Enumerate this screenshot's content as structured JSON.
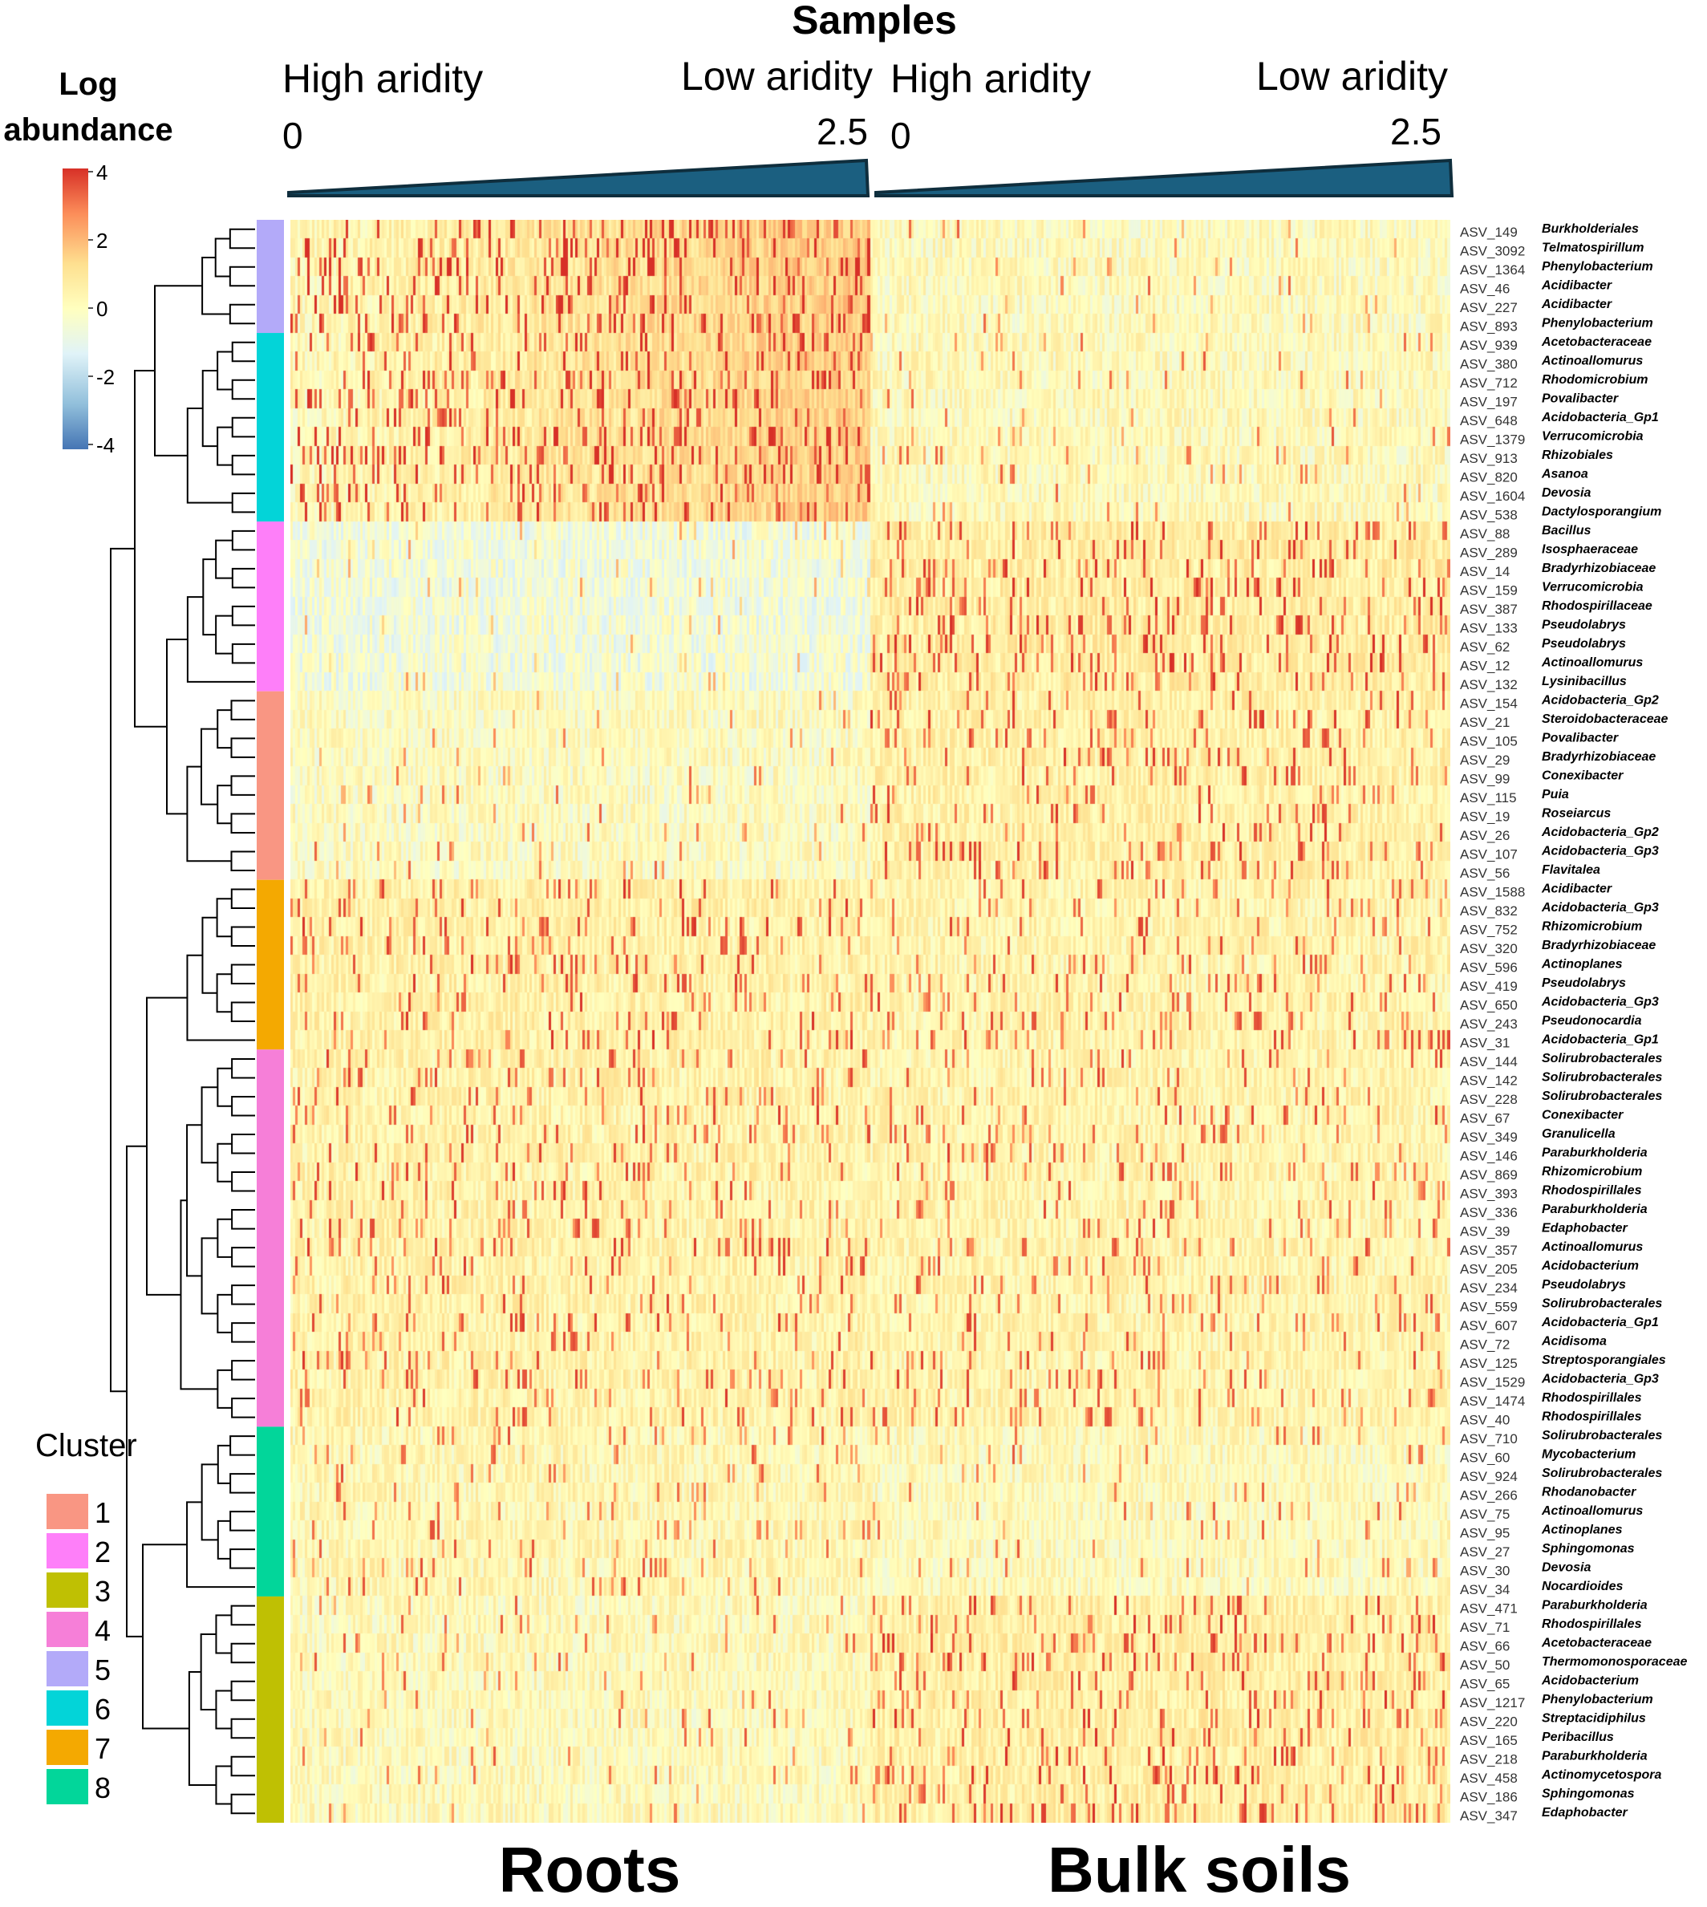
{
  "header": {
    "samples_title": "Samples",
    "high_aridity": "High aridity",
    "low_aridity": "Low aridity",
    "aridity_min": "0",
    "aridity_max": "2.5"
  },
  "colorbar": {
    "title_line1": "Log",
    "title_line2": "abundance",
    "ticks": [
      "4",
      "2",
      "0",
      "-2",
      "-4"
    ],
    "colors": [
      "#d73027",
      "#fc8d59",
      "#fee090",
      "#ffffbf",
      "#e0f3f8",
      "#91bfdb",
      "#4575b4"
    ]
  },
  "legend": {
    "title": "Cluster",
    "items": [
      {
        "label": "1",
        "color": "#f99683"
      },
      {
        "label": "2",
        "color": "#fe7ff9"
      },
      {
        "label": "3",
        "color": "#bfc003"
      },
      {
        "label": "4",
        "color": "#f67fd8"
      },
      {
        "label": "5",
        "color": "#b3aaf9"
      },
      {
        "label": "6",
        "color": "#03d4d8"
      },
      {
        "label": "7",
        "color": "#f4a901"
      },
      {
        "label": "8",
        "color": "#02d69a"
      }
    ]
  },
  "groups": {
    "roots": "Roots",
    "bulk": "Bulk soils"
  },
  "chart_data": {
    "type": "heatmap",
    "title": "Samples",
    "xlabel": "Samples",
    "colorbar_label": "Log abundance",
    "value_range": [
      -4,
      4
    ],
    "x_groups": [
      "Roots",
      "Bulk soils"
    ],
    "x_gradient": {
      "label_start": "High aridity",
      "label_end": "Low aridity",
      "min": 0,
      "max": 2.5
    },
    "rows": [
      {
        "asv": "ASV_149",
        "taxon": "Burkholderiales",
        "cluster": 5
      },
      {
        "asv": "ASV_3092",
        "taxon": "Telmatospirillum",
        "cluster": 5
      },
      {
        "asv": "ASV_1364",
        "taxon": "Phenylobacterium",
        "cluster": 5
      },
      {
        "asv": "ASV_46",
        "taxon": "Acidibacter",
        "cluster": 5
      },
      {
        "asv": "ASV_227",
        "taxon": "Acidibacter",
        "cluster": 5
      },
      {
        "asv": "ASV_893",
        "taxon": "Phenylobacterium",
        "cluster": 5
      },
      {
        "asv": "ASV_939",
        "taxon": "Acetobacteraceae",
        "cluster": 6
      },
      {
        "asv": "ASV_380",
        "taxon": "Actinoallomurus",
        "cluster": 6
      },
      {
        "asv": "ASV_712",
        "taxon": "Rhodomicrobium",
        "cluster": 6
      },
      {
        "asv": "ASV_197",
        "taxon": "Povalibacter",
        "cluster": 6
      },
      {
        "asv": "ASV_648",
        "taxon": "Acidobacteria_Gp1",
        "cluster": 6
      },
      {
        "asv": "ASV_1379",
        "taxon": "Verrucomicrobia",
        "cluster": 6
      },
      {
        "asv": "ASV_913",
        "taxon": "Rhizobiales",
        "cluster": 6
      },
      {
        "asv": "ASV_820",
        "taxon": "Asanoa",
        "cluster": 6
      },
      {
        "asv": "ASV_1604",
        "taxon": "Devosia",
        "cluster": 6
      },
      {
        "asv": "ASV_538",
        "taxon": "Dactylosporangium",
        "cluster": 6
      },
      {
        "asv": "ASV_88",
        "taxon": "Bacillus",
        "cluster": 2
      },
      {
        "asv": "ASV_289",
        "taxon": "Isosphaeraceae",
        "cluster": 2
      },
      {
        "asv": "ASV_14",
        "taxon": "Bradyrhizobiaceae",
        "cluster": 2
      },
      {
        "asv": "ASV_159",
        "taxon": "Verrucomicrobia",
        "cluster": 2
      },
      {
        "asv": "ASV_387",
        "taxon": "Rhodospirillaceae",
        "cluster": 2
      },
      {
        "asv": "ASV_133",
        "taxon": "Pseudolabrys",
        "cluster": 2
      },
      {
        "asv": "ASV_62",
        "taxon": "Pseudolabrys",
        "cluster": 2
      },
      {
        "asv": "ASV_12",
        "taxon": "Actinoallomurus",
        "cluster": 2
      },
      {
        "asv": "ASV_132",
        "taxon": "Lysinibacillus",
        "cluster": 2
      },
      {
        "asv": "ASV_154",
        "taxon": "Acidobacteria_Gp2",
        "cluster": 1
      },
      {
        "asv": "ASV_21",
        "taxon": "Steroidobacteraceae",
        "cluster": 1
      },
      {
        "asv": "ASV_105",
        "taxon": "Povalibacter",
        "cluster": 1
      },
      {
        "asv": "ASV_29",
        "taxon": "Bradyrhizobiaceae",
        "cluster": 1
      },
      {
        "asv": "ASV_99",
        "taxon": "Conexibacter",
        "cluster": 1
      },
      {
        "asv": "ASV_115",
        "taxon": "Puia",
        "cluster": 1
      },
      {
        "asv": "ASV_19",
        "taxon": "Roseiarcus",
        "cluster": 1
      },
      {
        "asv": "ASV_26",
        "taxon": "Acidobacteria_Gp2",
        "cluster": 1
      },
      {
        "asv": "ASV_107",
        "taxon": "Acidobacteria_Gp3",
        "cluster": 1
      },
      {
        "asv": "ASV_56",
        "taxon": "Flavitalea",
        "cluster": 1
      },
      {
        "asv": "ASV_1588",
        "taxon": "Acidibacter",
        "cluster": 7
      },
      {
        "asv": "ASV_832",
        "taxon": "Acidobacteria_Gp3",
        "cluster": 7
      },
      {
        "asv": "ASV_752",
        "taxon": "Rhizomicrobium",
        "cluster": 7
      },
      {
        "asv": "ASV_320",
        "taxon": "Bradyrhizobiaceae",
        "cluster": 7
      },
      {
        "asv": "ASV_596",
        "taxon": "Actinoplanes",
        "cluster": 7
      },
      {
        "asv": "ASV_419",
        "taxon": "Pseudolabrys",
        "cluster": 7
      },
      {
        "asv": "ASV_650",
        "taxon": "Acidobacteria_Gp3",
        "cluster": 7
      },
      {
        "asv": "ASV_243",
        "taxon": "Pseudonocardia",
        "cluster": 7
      },
      {
        "asv": "ASV_31",
        "taxon": "Acidobacteria_Gp1",
        "cluster": 7
      },
      {
        "asv": "ASV_144",
        "taxon": "Solirubrobacterales",
        "cluster": 4
      },
      {
        "asv": "ASV_142",
        "taxon": "Solirubrobacterales",
        "cluster": 4
      },
      {
        "asv": "ASV_228",
        "taxon": "Solirubrobacterales",
        "cluster": 4
      },
      {
        "asv": "ASV_67",
        "taxon": "Conexibacter",
        "cluster": 4
      },
      {
        "asv": "ASV_349",
        "taxon": "Granulicella",
        "cluster": 4
      },
      {
        "asv": "ASV_146",
        "taxon": "Paraburkholderia",
        "cluster": 4
      },
      {
        "asv": "ASV_869",
        "taxon": "Rhizomicrobium",
        "cluster": 4
      },
      {
        "asv": "ASV_393",
        "taxon": "Rhodospirillales",
        "cluster": 4
      },
      {
        "asv": "ASV_336",
        "taxon": "Paraburkholderia",
        "cluster": 4
      },
      {
        "asv": "ASV_39",
        "taxon": "Edaphobacter",
        "cluster": 4
      },
      {
        "asv": "ASV_357",
        "taxon": "Actinoallomurus",
        "cluster": 4
      },
      {
        "asv": "ASV_205",
        "taxon": "Acidobacterium",
        "cluster": 4
      },
      {
        "asv": "ASV_234",
        "taxon": "Pseudolabrys",
        "cluster": 4
      },
      {
        "asv": "ASV_559",
        "taxon": "Solirubrobacterales",
        "cluster": 4
      },
      {
        "asv": "ASV_607",
        "taxon": "Acidobacteria_Gp1",
        "cluster": 4
      },
      {
        "asv": "ASV_72",
        "taxon": "Acidisoma",
        "cluster": 4
      },
      {
        "asv": "ASV_125",
        "taxon": "Streptosporangiales",
        "cluster": 4
      },
      {
        "asv": "ASV_1529",
        "taxon": "Acidobacteria_Gp3",
        "cluster": 4
      },
      {
        "asv": "ASV_1474",
        "taxon": "Rhodospirillales",
        "cluster": 4
      },
      {
        "asv": "ASV_40",
        "taxon": "Rhodospirillales",
        "cluster": 4
      },
      {
        "asv": "ASV_710",
        "taxon": "Solirubrobacterales",
        "cluster": 8
      },
      {
        "asv": "ASV_60",
        "taxon": "Mycobacterium",
        "cluster": 8
      },
      {
        "asv": "ASV_924",
        "taxon": "Solirubrobacterales",
        "cluster": 8
      },
      {
        "asv": "ASV_266",
        "taxon": "Rhodanobacter",
        "cluster": 8
      },
      {
        "asv": "ASV_75",
        "taxon": "Actinoallomurus",
        "cluster": 8
      },
      {
        "asv": "ASV_95",
        "taxon": "Actinoplanes",
        "cluster": 8
      },
      {
        "asv": "ASV_27",
        "taxon": "Sphingomonas",
        "cluster": 8
      },
      {
        "asv": "ASV_30",
        "taxon": "Devosia",
        "cluster": 8
      },
      {
        "asv": "ASV_34",
        "taxon": "Nocardioides",
        "cluster": 8
      },
      {
        "asv": "ASV_471",
        "taxon": "Paraburkholderia",
        "cluster": 3
      },
      {
        "asv": "ASV_71",
        "taxon": "Rhodospirillales",
        "cluster": 3
      },
      {
        "asv": "ASV_66",
        "taxon": "Acetobacteraceae",
        "cluster": 3
      },
      {
        "asv": "ASV_50",
        "taxon": "Thermomonosporaceae",
        "cluster": 3
      },
      {
        "asv": "ASV_65",
        "taxon": "Acidobacterium",
        "cluster": 3
      },
      {
        "asv": "ASV_1217",
        "taxon": "Phenylobacterium",
        "cluster": 3
      },
      {
        "asv": "ASV_220",
        "taxon": "Streptacidiphilus",
        "cluster": 3
      },
      {
        "asv": "ASV_165",
        "taxon": "Peribacillus",
        "cluster": 3
      },
      {
        "asv": "ASV_218",
        "taxon": "Paraburkholderia",
        "cluster": 3
      },
      {
        "asv": "ASV_458",
        "taxon": "Actinomycetospora",
        "cluster": 3
      },
      {
        "asv": "ASV_186",
        "taxon": "Sphingomonas",
        "cluster": 3
      },
      {
        "asv": "ASV_347",
        "taxon": "Edaphobacter",
        "cluster": 3
      }
    ],
    "cluster_pattern": {
      "5": {
        "roots": 1.4,
        "bulk": 0.2
      },
      "6": {
        "roots": 1.3,
        "bulk": 0.3
      },
      "2": {
        "roots": -0.6,
        "bulk": 1.1
      },
      "1": {
        "roots": 0.1,
        "bulk": 0.9
      },
      "7": {
        "roots": 0.9,
        "bulk": 0.7
      },
      "4": {
        "roots": 0.8,
        "bulk": 0.7
      },
      "8": {
        "roots": 0.5,
        "bulk": 0.3
      },
      "3": {
        "roots": 0.3,
        "bulk": 1.0
      }
    }
  }
}
